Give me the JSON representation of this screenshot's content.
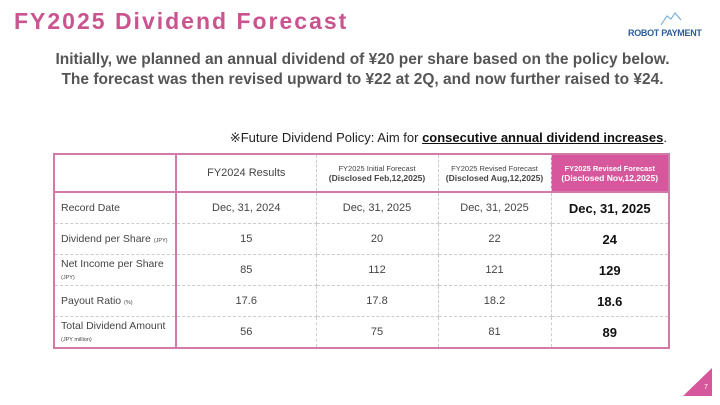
{
  "title": "FY2025 Dividend Forecast",
  "logo": "ROBOT PAYMENT",
  "intro": [
    "Initially, we planned an annual dividend of ¥20 per share based on the policy below.",
    "The forecast was then revised upward to ¥22 at 2Q, and now further raised to ¥24."
  ],
  "policy": {
    "prefix": "※Future Dividend Policy: Aim for ",
    "emphasis": "consecutive annual dividend increases",
    "suffix": "."
  },
  "table": {
    "headers": [
      {
        "line1": "FY2024 Results",
        "line2": ""
      },
      {
        "line1": "FY2025 Initial Forecast",
        "line2": "(Disclosed Feb,12,2025)"
      },
      {
        "line1": "FY2025 Revised Forecast",
        "line2": "(Disclosed Aug,12,2025)"
      },
      {
        "line1": "FY2025 Revised Forecast",
        "line2": "(Disclosed Nov,12,2025)"
      }
    ],
    "rows": [
      {
        "label": "Record Date",
        "unit": "",
        "values": [
          "Dec, 31, 2024",
          "Dec, 31, 2025",
          "Dec, 31, 2025",
          "Dec, 31, 2025"
        ]
      },
      {
        "label": "Dividend per Share",
        "unit": "(JPY)",
        "values": [
          "15",
          "20",
          "22",
          "24"
        ]
      },
      {
        "label": "Net Income per Share",
        "unit": "(JPY)",
        "values": [
          "85",
          "112",
          "121",
          "129"
        ]
      },
      {
        "label": "Payout Ratio",
        "unit": "(%)",
        "values": [
          "17.6",
          "17.8",
          "18.2",
          "18.6"
        ]
      },
      {
        "label": "Total Dividend Amount",
        "unit": "(JPY million)",
        "values": [
          "56",
          "75",
          "81",
          "89"
        ]
      }
    ]
  },
  "page_number": "7",
  "colors": {
    "accent": "#d6579b",
    "title": "#c9548f"
  }
}
